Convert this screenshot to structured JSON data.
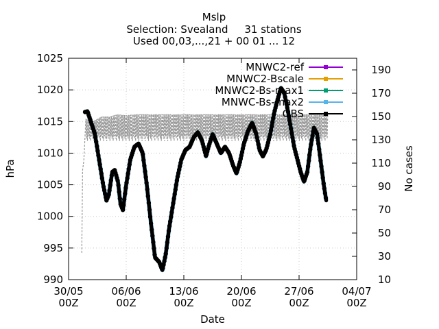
{
  "chart_data": {
    "type": "line",
    "title": [
      "Mslp",
      "Selection: Svealand     31 stations",
      "Used 00,03,...,21 + 00 01 ... 12"
    ],
    "xlabel": "Date",
    "ylabel": "hPa",
    "y2label": "No cases",
    "xlim": [
      0,
      35
    ],
    "ylim": [
      990,
      1025
    ],
    "y2lim": [
      10,
      200
    ],
    "x_ticks": [
      {
        "x": 0,
        "line1": "30/05",
        "line2": "00Z"
      },
      {
        "x": 7,
        "line1": "06/06",
        "line2": "00Z"
      },
      {
        "x": 14,
        "line1": "13/06",
        "line2": "00Z"
      },
      {
        "x": 21,
        "line1": "20/06",
        "line2": "00Z"
      },
      {
        "x": 28,
        "line1": "27/06",
        "line2": "00Z"
      },
      {
        "x": 35,
        "line1": "04/07",
        "line2": "00Z"
      }
    ],
    "y_ticks": [
      990,
      995,
      1000,
      1005,
      1010,
      1015,
      1020,
      1025
    ],
    "y2_ticks": [
      10,
      30,
      50,
      70,
      90,
      110,
      130,
      150,
      170,
      190
    ],
    "legend_position": "top-right",
    "series": [
      {
        "name": "MNWC2-ref",
        "color": "#9400d3"
      },
      {
        "name": "MNWC2-Bscale",
        "color": "#e69f00"
      },
      {
        "name": "MNWC2-Bs-max1",
        "color": "#009e73"
      },
      {
        "name": "MNWC-Bs-max2",
        "color": "#56b4e9"
      },
      {
        "name": "OBS",
        "color": "#000000"
      }
    ],
    "pressure_points": [
      [
        2.0,
        1016.5
      ],
      [
        2.3,
        1016.6
      ],
      [
        2.7,
        1015.0
      ],
      [
        3.2,
        1013.0
      ],
      [
        3.7,
        1009.0
      ],
      [
        4.2,
        1005.0
      ],
      [
        4.6,
        1002.5
      ],
      [
        4.9,
        1003.5
      ],
      [
        5.3,
        1007.0
      ],
      [
        5.6,
        1007.3
      ],
      [
        6.0,
        1005.5
      ],
      [
        6.3,
        1002.0
      ],
      [
        6.6,
        1001.0
      ],
      [
        7.0,
        1005.0
      ],
      [
        7.5,
        1009.0
      ],
      [
        8.0,
        1011.0
      ],
      [
        8.5,
        1011.5
      ],
      [
        9.0,
        1010.0
      ],
      [
        9.5,
        1005.0
      ],
      [
        10.0,
        999.0
      ],
      [
        10.5,
        993.5
      ],
      [
        11.0,
        992.8
      ],
      [
        11.4,
        991.5
      ],
      [
        11.8,
        994.0
      ],
      [
        12.2,
        998.0
      ],
      [
        12.7,
        1002.0
      ],
      [
        13.2,
        1006.0
      ],
      [
        13.7,
        1009.0
      ],
      [
        14.2,
        1010.5
      ],
      [
        14.7,
        1011.0
      ],
      [
        15.2,
        1012.5
      ],
      [
        15.7,
        1013.3
      ],
      [
        16.2,
        1012.0
      ],
      [
        16.7,
        1009.5
      ],
      [
        17.0,
        1011.0
      ],
      [
        17.5,
        1013.0
      ],
      [
        18.0,
        1011.5
      ],
      [
        18.5,
        1010.0
      ],
      [
        19.0,
        1011.0
      ],
      [
        19.5,
        1010.0
      ],
      [
        20.0,
        1008.0
      ],
      [
        20.4,
        1006.8
      ],
      [
        20.8,
        1008.5
      ],
      [
        21.3,
        1011.5
      ],
      [
        21.8,
        1013.5
      ],
      [
        22.3,
        1014.8
      ],
      [
        22.8,
        1013.0
      ],
      [
        23.2,
        1010.5
      ],
      [
        23.6,
        1009.5
      ],
      [
        24.0,
        1010.5
      ],
      [
        24.5,
        1013.0
      ],
      [
        25.0,
        1016.5
      ],
      [
        25.4,
        1018.5
      ],
      [
        25.8,
        1020.3
      ],
      [
        26.2,
        1019.5
      ],
      [
        26.6,
        1017.0
      ],
      [
        27.0,
        1014.0
      ],
      [
        27.4,
        1011.0
      ],
      [
        27.8,
        1009.0
      ],
      [
        28.2,
        1007.0
      ],
      [
        28.6,
        1005.5
      ],
      [
        29.0,
        1007.0
      ],
      [
        29.4,
        1011.0
      ],
      [
        29.8,
        1014.0
      ],
      [
        30.2,
        1013.0
      ],
      [
        30.6,
        1009.0
      ],
      [
        31.0,
        1005.0
      ],
      [
        31.3,
        1002.5
      ]
    ],
    "cases_points": [
      [
        1.6,
        33
      ],
      [
        1.7,
        104
      ],
      [
        1.85,
        112
      ],
      [
        2.1,
        148
      ],
      [
        3.0,
        146
      ],
      [
        4.0,
        150
      ],
      [
        5.0,
        150
      ],
      [
        6.0,
        152
      ],
      [
        7.0,
        151
      ],
      [
        8.0,
        152
      ],
      [
        9.0,
        152
      ],
      [
        10.0,
        152
      ],
      [
        11.0,
        152
      ],
      [
        12.0,
        152
      ],
      [
        13.0,
        152
      ],
      [
        14.0,
        152
      ],
      [
        15.0,
        152
      ],
      [
        16.0,
        152
      ],
      [
        17.0,
        152
      ],
      [
        18.0,
        152
      ],
      [
        19.0,
        152
      ],
      [
        20.0,
        152
      ],
      [
        21.0,
        152
      ],
      [
        22.0,
        152
      ],
      [
        23.0,
        152
      ],
      [
        24.0,
        152
      ],
      [
        25.0,
        152
      ],
      [
        26.0,
        152
      ],
      [
        27.0,
        152
      ],
      [
        28.0,
        152
      ],
      [
        29.0,
        152
      ],
      [
        30.0,
        152
      ],
      [
        31.0,
        152
      ],
      [
        31.5,
        152
      ]
    ]
  }
}
